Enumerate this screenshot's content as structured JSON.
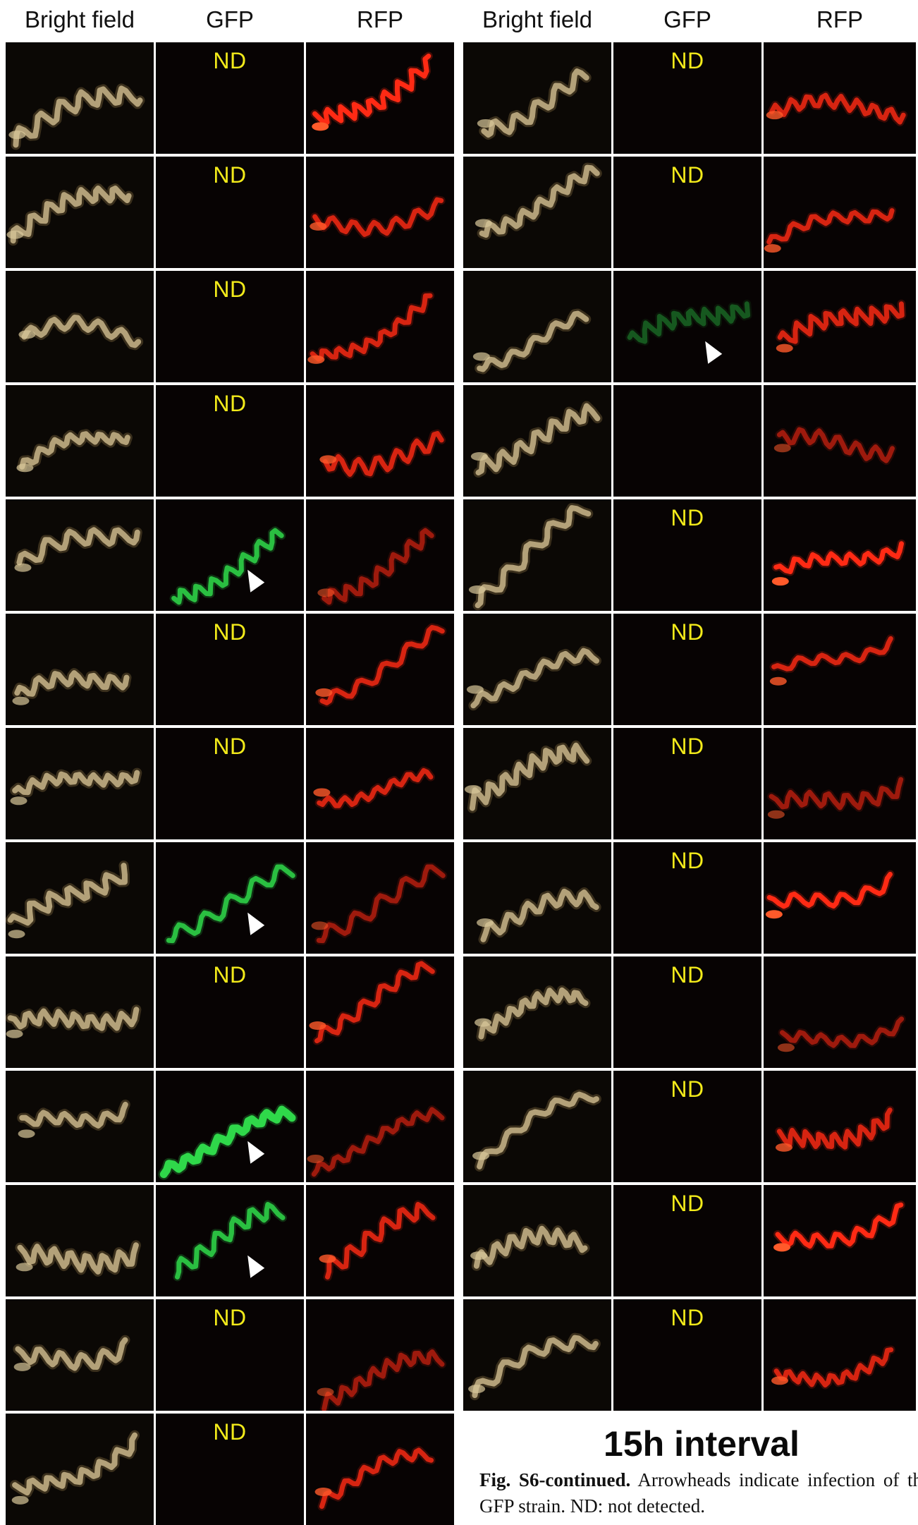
{
  "header": {
    "left": [
      "Bright field",
      "GFP",
      "RFP"
    ],
    "right": [
      "Bright field",
      "GFP",
      "RFP"
    ]
  },
  "nd_label": "ND",
  "colors": {
    "bright_field": "#c9b58a",
    "gfp": "#2fd84a",
    "rfp": "#ff2a14",
    "nd_text": "#f2ea1a",
    "panel_bg": "#070303",
    "arrowhead": "#ffffff"
  },
  "left_rows": [
    {
      "gfp": "nd",
      "rfp": "bright"
    },
    {
      "gfp": "nd",
      "rfp": "medium"
    },
    {
      "gfp": "nd",
      "rfp": "medium"
    },
    {
      "gfp": "nd",
      "rfp": "medium"
    },
    {
      "gfp": "signal",
      "gfp_level": "medium",
      "arrowhead": true,
      "rfp": "dim"
    },
    {
      "gfp": "nd",
      "rfp": "medium"
    },
    {
      "gfp": "nd",
      "rfp": "medium"
    },
    {
      "gfp": "signal",
      "gfp_level": "medium",
      "arrowhead": true,
      "rfp": "dim"
    },
    {
      "gfp": "nd",
      "rfp": "medium"
    },
    {
      "gfp": "signal",
      "gfp_level": "bright",
      "arrowhead": true,
      "rfp": "dim"
    },
    {
      "gfp": "signal",
      "gfp_level": "medium",
      "arrowhead": true,
      "rfp": "medium"
    },
    {
      "gfp": "nd",
      "rfp": "dim"
    },
    {
      "gfp": "nd",
      "rfp": "medium"
    }
  ],
  "right_rows": [
    {
      "gfp": "nd",
      "rfp": "medium"
    },
    {
      "gfp": "nd",
      "rfp": "medium"
    },
    {
      "gfp": "signal",
      "gfp_level": "faint",
      "arrowhead": true,
      "rfp": "medium"
    },
    {
      "gfp": "none",
      "rfp": "dim"
    },
    {
      "gfp": "nd",
      "rfp": "bright"
    },
    {
      "gfp": "nd",
      "rfp": "medium"
    },
    {
      "gfp": "nd",
      "rfp": "dim"
    },
    {
      "gfp": "nd",
      "rfp": "bright"
    },
    {
      "gfp": "nd",
      "rfp": "dim"
    },
    {
      "gfp": "nd",
      "rfp": "medium"
    },
    {
      "gfp": "nd",
      "rfp": "bright"
    },
    {
      "gfp": "nd",
      "rfp": "medium"
    }
  ],
  "figure": {
    "interval_title": "15h interval",
    "caption_label": "Fig. S6-continued.",
    "caption_text": " Arrowheads indicate infection of the GFP strain. ND: not detected."
  }
}
